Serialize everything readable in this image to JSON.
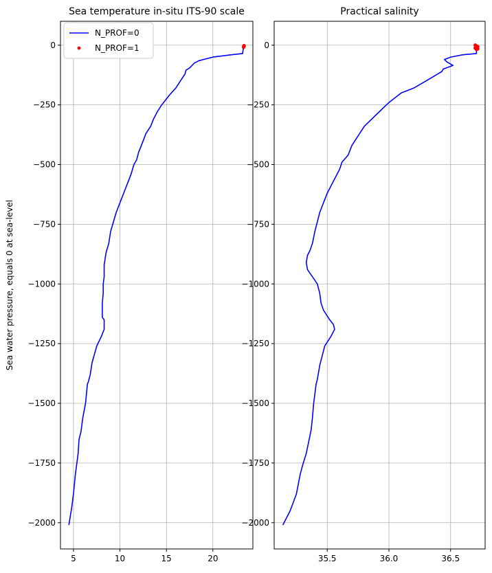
{
  "chart_data": [
    {
      "type": "line",
      "title": "Sea temperature in-situ ITS-90 scale",
      "xlabel": "",
      "ylabel": "Sea water pressure, equals 0 at sea-level",
      "xlim": [
        3.6,
        24.3
      ],
      "ylim": [
        -2110,
        100
      ],
      "grid": true,
      "legend_position": "top-left",
      "xticks": [
        5,
        10,
        15,
        20
      ],
      "yticks": [
        0,
        -250,
        -500,
        -750,
        -1000,
        -1250,
        -1500,
        -1750,
        -2000
      ],
      "series": [
        {
          "name": "N_PROF=0",
          "style": "line",
          "color": "#0000ff",
          "x": [
            23.3,
            23.2,
            22.0,
            20.0,
            18.5,
            18.0,
            17.5,
            17.1,
            17.0,
            16.5,
            16.0,
            15.3,
            14.5,
            14.0,
            13.6,
            13.3,
            12.8,
            12.5,
            12.0,
            11.8,
            11.5,
            11.2,
            10.8,
            10.4,
            10.0,
            9.6,
            9.3,
            9.0,
            8.8,
            8.5,
            8.3,
            8.3,
            8.2,
            8.2,
            8.1,
            8.1,
            8.3,
            8.3,
            8.0,
            7.5,
            7.0,
            6.8,
            6.6,
            6.5,
            6.3,
            6.0,
            5.8,
            5.6,
            5.5,
            5.2,
            5.0,
            4.8,
            4.5
          ],
          "y": [
            -5,
            -35,
            -40,
            -50,
            -65,
            -75,
            -95,
            -105,
            -120,
            -150,
            -180,
            -210,
            -250,
            -280,
            -310,
            -340,
            -370,
            -400,
            -450,
            -480,
            -500,
            -540,
            -580,
            -620,
            -660,
            -700,
            -740,
            -780,
            -830,
            -870,
            -920,
            -970,
            -1000,
            -1040,
            -1080,
            -1140,
            -1150,
            -1190,
            -1220,
            -1260,
            -1330,
            -1380,
            -1410,
            -1420,
            -1500,
            -1560,
            -1620,
            -1650,
            -1710,
            -1800,
            -1880,
            -1940,
            -2010
          ]
        },
        {
          "name": "N_PROF=1",
          "style": "points",
          "color": "#ff0000",
          "x": [
            23.35,
            23.35,
            23.3
          ],
          "y": [
            -2,
            -5,
            -8
          ]
        }
      ]
    },
    {
      "type": "line",
      "title": "Practical salinity",
      "xlabel": "",
      "ylabel": "",
      "xlim": [
        35.07,
        36.78
      ],
      "ylim": [
        -2110,
        100
      ],
      "grid": true,
      "xticks": [
        35.5,
        36.0,
        36.5
      ],
      "xtick_labels": [
        "35.5",
        "36.0",
        "36.5"
      ],
      "yticks": [
        0,
        -250,
        -500,
        -750,
        -1000,
        -1250,
        -1500,
        -1750,
        -2000
      ],
      "series": [
        {
          "name": "N_PROF=0",
          "style": "line",
          "color": "#0000ff",
          "x": [
            36.71,
            36.71,
            36.6,
            36.5,
            36.45,
            36.47,
            36.52,
            36.44,
            36.43,
            36.3,
            36.2,
            36.1,
            36.0,
            35.9,
            35.8,
            35.75,
            35.7,
            35.67,
            35.62,
            35.6,
            35.55,
            35.5,
            35.47,
            35.44,
            35.42,
            35.4,
            35.38,
            35.36,
            35.34,
            35.33,
            35.34,
            35.38,
            35.42,
            35.44,
            35.45,
            35.47,
            35.52,
            35.55,
            35.56,
            35.53,
            35.48,
            35.44,
            35.42,
            35.41,
            35.39,
            35.38,
            35.37,
            35.35,
            35.33,
            35.3,
            35.28,
            35.25,
            35.2,
            35.14
          ],
          "y": [
            -5,
            -35,
            -40,
            -50,
            -60,
            -70,
            -85,
            -100,
            -110,
            -150,
            -180,
            -200,
            -240,
            -290,
            -340,
            -380,
            -420,
            -460,
            -490,
            -520,
            -570,
            -620,
            -660,
            -700,
            -740,
            -780,
            -830,
            -860,
            -880,
            -910,
            -940,
            -970,
            -1000,
            -1040,
            -1080,
            -1110,
            -1150,
            -1170,
            -1190,
            -1220,
            -1260,
            -1340,
            -1400,
            -1420,
            -1500,
            -1560,
            -1610,
            -1660,
            -1710,
            -1760,
            -1800,
            -1880,
            -1950,
            -2010
          ]
        },
        {
          "name": "N_PROF=1",
          "style": "points",
          "color": "#ff0000",
          "x": [
            36.7,
            36.71,
            36.72,
            36.71,
            36.7,
            36.72,
            36.71
          ],
          "y": [
            0,
            -3,
            -6,
            -9,
            -12,
            -15,
            -18
          ]
        }
      ]
    }
  ]
}
